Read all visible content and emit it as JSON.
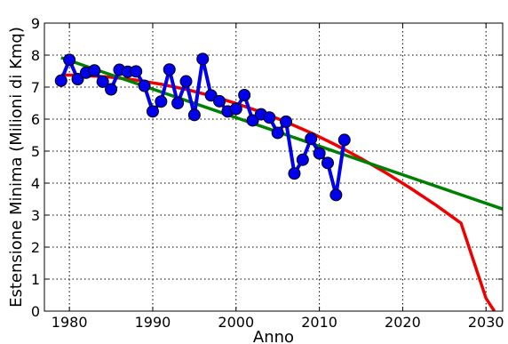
{
  "chart_data": {
    "type": "line",
    "title": "",
    "xlabel": "Anno",
    "ylabel": "Estensione Minima (Milioni di Kmq)",
    "xlim": [
      1977,
      2032
    ],
    "ylim": [
      0,
      9
    ],
    "grid": true,
    "xticks": [
      1980,
      1990,
      2000,
      2010,
      2020,
      2030
    ],
    "yticks": [
      0,
      1,
      2,
      3,
      4,
      5,
      6,
      7,
      8,
      9
    ],
    "series": [
      {
        "kind": "observed",
        "color": "#0000ee",
        "marker": "circle",
        "x": [
          1979,
          1980,
          1981,
          1982,
          1983,
          1984,
          1985,
          1986,
          1987,
          1988,
          1989,
          1990,
          1991,
          1992,
          1993,
          1994,
          1995,
          1996,
          1997,
          1998,
          1999,
          2000,
          2001,
          2002,
          2003,
          2004,
          2005,
          2006,
          2007,
          2008,
          2009,
          2010,
          2011,
          2012,
          2013
        ],
        "y": [
          7.2,
          7.85,
          7.25,
          7.45,
          7.52,
          7.17,
          6.93,
          7.54,
          7.48,
          7.49,
          7.04,
          6.24,
          6.55,
          7.55,
          6.5,
          7.18,
          6.13,
          7.88,
          6.74,
          6.56,
          6.24,
          6.32,
          6.75,
          5.96,
          6.15,
          6.05,
          5.57,
          5.92,
          4.3,
          4.73,
          5.39,
          4.93,
          4.63,
          3.63,
          5.35
        ]
      },
      {
        "kind": "quadratic-fit",
        "color": "#ee0000",
        "x": [
          1979,
          1982,
          1985,
          1988,
          1991,
          1994,
          1997,
          2000,
          2003,
          2006,
          2009,
          2012,
          2015,
          2018,
          2021,
          2024,
          2027,
          2030,
          2031
        ],
        "y": [
          7.38,
          7.36,
          7.31,
          7.22,
          7.09,
          6.93,
          6.73,
          6.49,
          6.22,
          5.91,
          5.57,
          5.19,
          4.77,
          4.32,
          3.83,
          3.31,
          2.75,
          0.4,
          0.0
        ]
      },
      {
        "kind": "linear-fit",
        "color": "#008000",
        "x": [
          1979,
          2032
        ],
        "y": [
          7.92,
          3.19
        ]
      }
    ]
  }
}
